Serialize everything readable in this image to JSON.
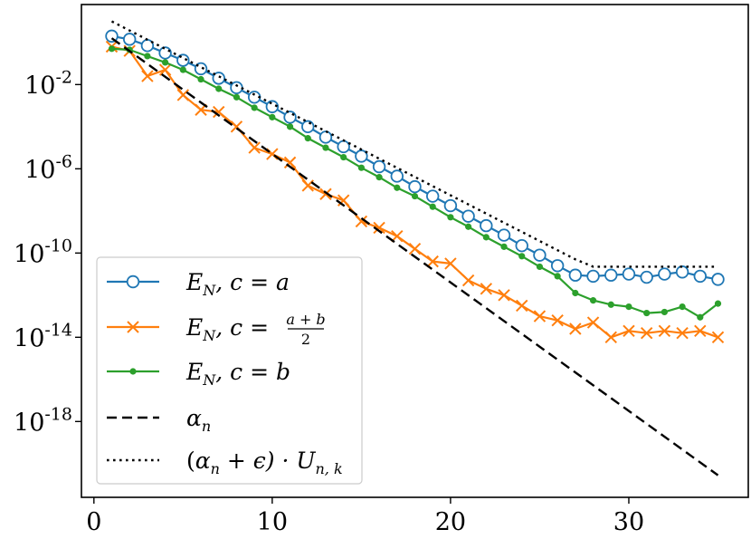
{
  "chart_data": {
    "type": "line",
    "title": "",
    "xlabel": "",
    "ylabel": "",
    "yscale": "log",
    "xlim": [
      -0.7,
      36.7
    ],
    "ylim_log10": [
      -21.6,
      1.8
    ],
    "x_ticks": [
      0,
      10,
      20,
      30
    ],
    "x_tick_labels": [
      "0",
      "10",
      "20",
      "30"
    ],
    "y_ticks_log10": [
      -2,
      -6,
      -10,
      -14,
      -18
    ],
    "y_tick_labels": [
      {
        "base": "10",
        "exp": "-2"
      },
      {
        "base": "10",
        "exp": "-6"
      },
      {
        "base": "10",
        "exp": "-10"
      },
      {
        "base": "10",
        "exp": "-14"
      },
      {
        "base": "10",
        "exp": "-18"
      }
    ],
    "legend_position": "lower-left",
    "series": [
      {
        "name": "E_N, c = a",
        "legend": {
          "main": "E",
          "sub": "N",
          "rest": ", c = a"
        },
        "color": "#1f77b4",
        "marker": "circle",
        "linestyle": "solid",
        "x": [
          1,
          2,
          3,
          4,
          5,
          6,
          7,
          8,
          9,
          10,
          11,
          12,
          13,
          14,
          15,
          16,
          17,
          18,
          19,
          20,
          21,
          22,
          23,
          24,
          25,
          26,
          27,
          28,
          29,
          30,
          31,
          32,
          33,
          34,
          35
        ],
        "log10_y": [
          0.3,
          0.15,
          -0.15,
          -0.5,
          -0.85,
          -1.25,
          -1.7,
          -2.15,
          -2.6,
          -3.05,
          -3.55,
          -4.0,
          -4.5,
          -4.95,
          -5.4,
          -5.9,
          -6.35,
          -6.85,
          -7.3,
          -7.75,
          -8.25,
          -8.7,
          -9.15,
          -9.65,
          -10.1,
          -10.6,
          -11.05,
          -11.1,
          -11.05,
          -11.0,
          -11.15,
          -11.0,
          -10.9,
          -11.1,
          -11.25
        ]
      },
      {
        "name": "E_N, c = (a+b)/2",
        "legend": {
          "main": "E",
          "sub": "N",
          "rest": ", c = ",
          "frac_num": "a + b",
          "frac_den": "2"
        },
        "color": "#ff7f0e",
        "marker": "x",
        "linestyle": "solid",
        "x": [
          1,
          2,
          3,
          4,
          5,
          6,
          7,
          8,
          9,
          10,
          11,
          12,
          13,
          14,
          15,
          16,
          17,
          18,
          19,
          20,
          21,
          22,
          23,
          24,
          25,
          26,
          27,
          28,
          29,
          30,
          31,
          32,
          33,
          34,
          35
        ],
        "log10_y": [
          -0.2,
          -0.4,
          -1.6,
          -1.3,
          -2.5,
          -3.2,
          -3.3,
          -4.0,
          -5.0,
          -5.3,
          -5.7,
          -6.8,
          -7.2,
          -7.5,
          -8.5,
          -8.8,
          -9.2,
          -9.8,
          -10.4,
          -10.5,
          -11.3,
          -11.7,
          -12.0,
          -12.5,
          -13.0,
          -13.2,
          -13.6,
          -13.3,
          -14.0,
          -13.7,
          -13.8,
          -13.7,
          -13.8,
          -13.7,
          -14.0
        ]
      },
      {
        "name": "E_N, c = b",
        "legend": {
          "main": "E",
          "sub": "N",
          "rest": ", c = b"
        },
        "color": "#2ca02c",
        "marker": "dot",
        "linestyle": "solid",
        "x": [
          1,
          2,
          3,
          4,
          5,
          6,
          7,
          8,
          9,
          10,
          11,
          12,
          13,
          14,
          15,
          16,
          17,
          18,
          19,
          20,
          21,
          22,
          23,
          24,
          25,
          26,
          27,
          28,
          29,
          30,
          31,
          32,
          33,
          34,
          35
        ],
        "log10_y": [
          -0.3,
          -0.35,
          -0.65,
          -0.95,
          -1.3,
          -1.75,
          -2.2,
          -2.6,
          -3.1,
          -3.55,
          -4.0,
          -4.55,
          -5.0,
          -5.45,
          -5.95,
          -6.4,
          -6.9,
          -7.3,
          -7.8,
          -8.3,
          -8.75,
          -9.25,
          -9.7,
          -10.15,
          -10.65,
          -11.1,
          -11.9,
          -12.25,
          -12.45,
          -12.55,
          -12.85,
          -12.8,
          -12.55,
          -13.05,
          -12.4
        ]
      },
      {
        "name": "alpha_n",
        "legend": {
          "main": "α",
          "sub": "n",
          "rest": ""
        },
        "color": "#000000",
        "marker": "none",
        "linestyle": "dashed",
        "x": [
          1,
          35
        ],
        "log10_y": [
          0.2,
          -20.55
        ]
      },
      {
        "name": "(alpha_n + epsilon) · U_{n,k}",
        "legend": {
          "prefix": "(",
          "main": "α",
          "sub": "n",
          "rest": " + ϵ) · U",
          "sub2": "n, k"
        },
        "color": "#000000",
        "marker": "none",
        "linestyle": "dotted",
        "x": [
          1,
          27,
          28,
          35
        ],
        "log10_y": [
          1.0,
          -10.3,
          -10.65,
          -10.65
        ]
      }
    ]
  }
}
